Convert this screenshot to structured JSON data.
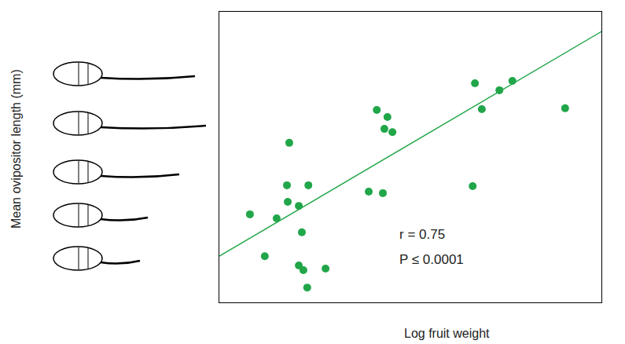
{
  "chart_data": {
    "type": "scatter",
    "x_label": "Log fruit weight",
    "y_label": "Mean ovipositor length (mm)",
    "annotations": [
      "r = 0.75",
      "P ≤ 0.0001"
    ],
    "tick_labels": false,
    "grid": false,
    "xlim": [
      0,
      100
    ],
    "ylim": [
      0,
      100
    ],
    "series": [
      {
        "type": "scatter",
        "marker": "circle",
        "color": "#21a649",
        "x": [
          8.0,
          11.9,
          15.0,
          17.7,
          17.9,
          18.3,
          20.8,
          20.8,
          21.6,
          22.0,
          23.0,
          23.3,
          27.8,
          39.1,
          41.2,
          42.8,
          43.2,
          44.0,
          45.3,
          66.3,
          66.9,
          68.7,
          73.3,
          76.7,
          90.5
        ],
        "values": [
          30.3,
          15.9,
          28.9,
          40.3,
          34.6,
          54.9,
          33.2,
          12.7,
          24.1,
          11.1,
          5.1,
          40.3,
          11.6,
          38.1,
          66.2,
          37.6,
          59.7,
          63.8,
          58.6,
          40.0,
          75.4,
          66.5,
          73.0,
          76.2,
          66.8
        ]
      },
      {
        "type": "line",
        "line_style": "solid",
        "color": "#21a649",
        "x": [
          0,
          100
        ],
        "values": [
          15.9,
          93.2
        ]
      }
    ]
  }
}
